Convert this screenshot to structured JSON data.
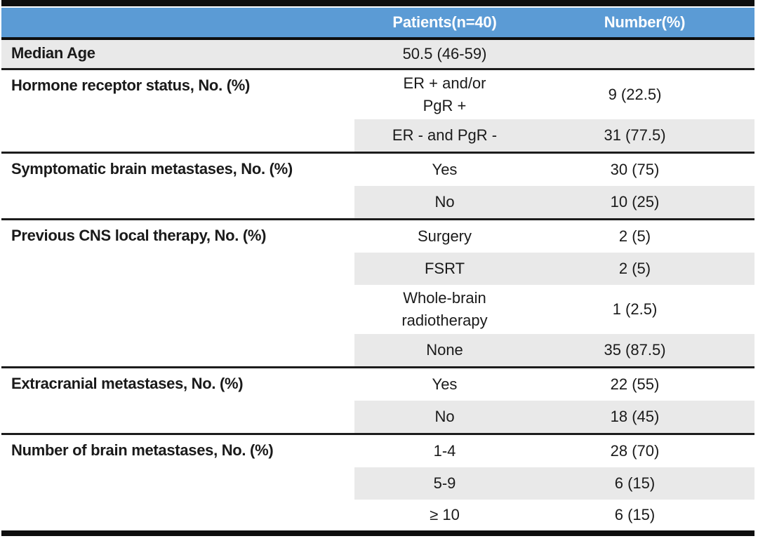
{
  "table": {
    "colors": {
      "header_bg": "#5B9BD5",
      "header_text": "#FFFFFF",
      "row_shade": "#E9E9E9",
      "border": "#0E0E0E"
    },
    "header": {
      "col_patients": "Patients(n=40)",
      "col_number": "Number(%)"
    },
    "sections": [
      {
        "label": "Median Age",
        "rows": [
          {
            "value": "50.5 (46-59)",
            "number": ""
          }
        ]
      },
      {
        "label": "Hormone receptor status, No. (%)",
        "rows": [
          {
            "value": "ER + and/or\nPgR +",
            "number": "9 (22.5)"
          },
          {
            "value": "ER - and PgR -",
            "number": "31 (77.5)"
          }
        ]
      },
      {
        "label": "Symptomatic brain metastases, No. (%)",
        "rows": [
          {
            "value": "Yes",
            "number": "30 (75)"
          },
          {
            "value": "No",
            "number": "10 (25)"
          }
        ]
      },
      {
        "label": "Previous CNS local therapy, No. (%)",
        "rows": [
          {
            "value": "Surgery",
            "number": "2 (5)"
          },
          {
            "value": "FSRT",
            "number": "2 (5)"
          },
          {
            "value": "Whole-brain\nradiotherapy",
            "number": "1 (2.5)"
          },
          {
            "value": "None",
            "number": "35 (87.5)"
          }
        ]
      },
      {
        "label": "Extracranial metastases, No. (%)",
        "rows": [
          {
            "value": "Yes",
            "number": "22 (55)"
          },
          {
            "value": "No",
            "number": "18 (45)"
          }
        ]
      },
      {
        "label": "Number of brain metastases, No. (%)",
        "rows": [
          {
            "value": "1-4",
            "number": "28 (70)"
          },
          {
            "value": "5-9",
            "number": "6 (15)"
          },
          {
            "value": "≥ 10",
            "number": "6 (15)"
          }
        ]
      }
    ]
  }
}
